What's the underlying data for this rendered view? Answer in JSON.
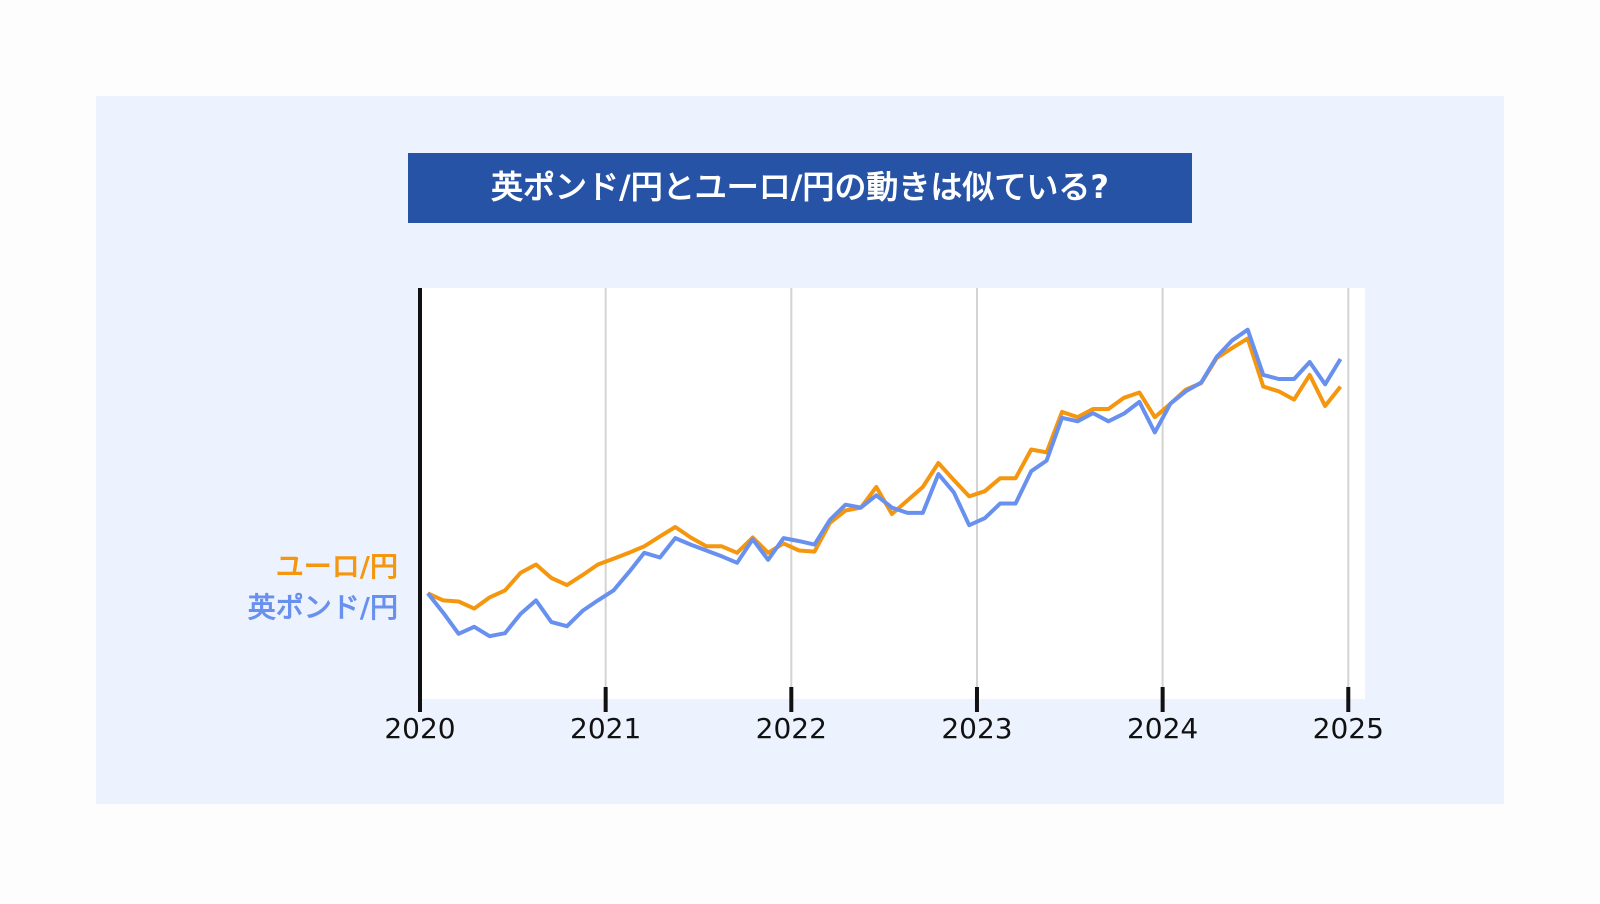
{
  "chart_data": {
    "type": "line",
    "title": "英ポンド/円とユーロ/円の動きは似ている?",
    "x": [
      2020.042,
      2020.125,
      2020.208,
      2020.292,
      2020.375,
      2020.458,
      2020.542,
      2020.625,
      2020.708,
      2020.792,
      2020.875,
      2020.958,
      2021.042,
      2021.125,
      2021.208,
      2021.292,
      2021.375,
      2021.458,
      2021.542,
      2021.625,
      2021.708,
      2021.792,
      2021.875,
      2021.958,
      2022.042,
      2022.125,
      2022.208,
      2022.292,
      2022.375,
      2022.458,
      2022.542,
      2022.625,
      2022.708,
      2022.792,
      2022.875,
      2022.958,
      2023.042,
      2023.125,
      2023.208,
      2023.292,
      2023.375,
      2023.458,
      2023.542,
      2023.625,
      2023.708,
      2023.792,
      2023.875,
      2023.958,
      2024.042,
      2024.125,
      2024.208,
      2024.292,
      2024.375,
      2024.458,
      2024.542,
      2024.625,
      2024.708,
      2024.792,
      2024.875,
      2024.958
    ],
    "series": [
      {
        "name": "ユーロ/円",
        "color": "#f5960f",
        "values": [
          100,
          98.8,
          98.6,
          97.4,
          99.3,
          100.5,
          103.5,
          104.9,
          102.6,
          101.4,
          103.1,
          104.9,
          105.9,
          106.9,
          108.0,
          109.7,
          111.3,
          109.5,
          108.0,
          108.0,
          106.9,
          109.5,
          106.9,
          108.5,
          107.3,
          107.1,
          112.0,
          114.1,
          114.6,
          118.1,
          113.5,
          115.8,
          118.1,
          122.2,
          119.3,
          116.5,
          117.4,
          119.6,
          119.6,
          124.5,
          124.0,
          130.9,
          130.0,
          131.4,
          131.4,
          133.3,
          134.2,
          130.0,
          132.3,
          134.7,
          135.8,
          140.1,
          141.8,
          143.4,
          135.2,
          134.4,
          133.0,
          137.2,
          131.9,
          135.2
        ]
      },
      {
        "name": "英ポンド/円",
        "color": "#6890ee",
        "values": [
          100,
          96.7,
          93.1,
          94.3,
          92.7,
          93.2,
          96.5,
          98.8,
          95.1,
          94.4,
          97.0,
          98.8,
          100.5,
          103.6,
          106.9,
          106.1,
          109.4,
          108.3,
          107.3,
          106.3,
          105.2,
          109.2,
          105.7,
          109.4,
          108.9,
          108.3,
          112.5,
          115.1,
          114.6,
          116.7,
          114.6,
          113.7,
          113.7,
          120.3,
          117.2,
          111.6,
          112.8,
          115.3,
          115.3,
          120.8,
          122.6,
          129.9,
          129.3,
          130.7,
          129.3,
          130.6,
          132.6,
          127.4,
          132.3,
          134.4,
          135.9,
          140.3,
          143.1,
          144.9,
          137.2,
          136.5,
          136.5,
          139.4,
          135.6,
          139.9
        ]
      }
    ],
    "xlim": [
      2020,
      2025.09
    ],
    "xticks": [
      2020,
      2021,
      2022,
      2023,
      2024,
      2025
    ],
    "ylim": [
      82,
      152
    ],
    "grid": true
  }
}
